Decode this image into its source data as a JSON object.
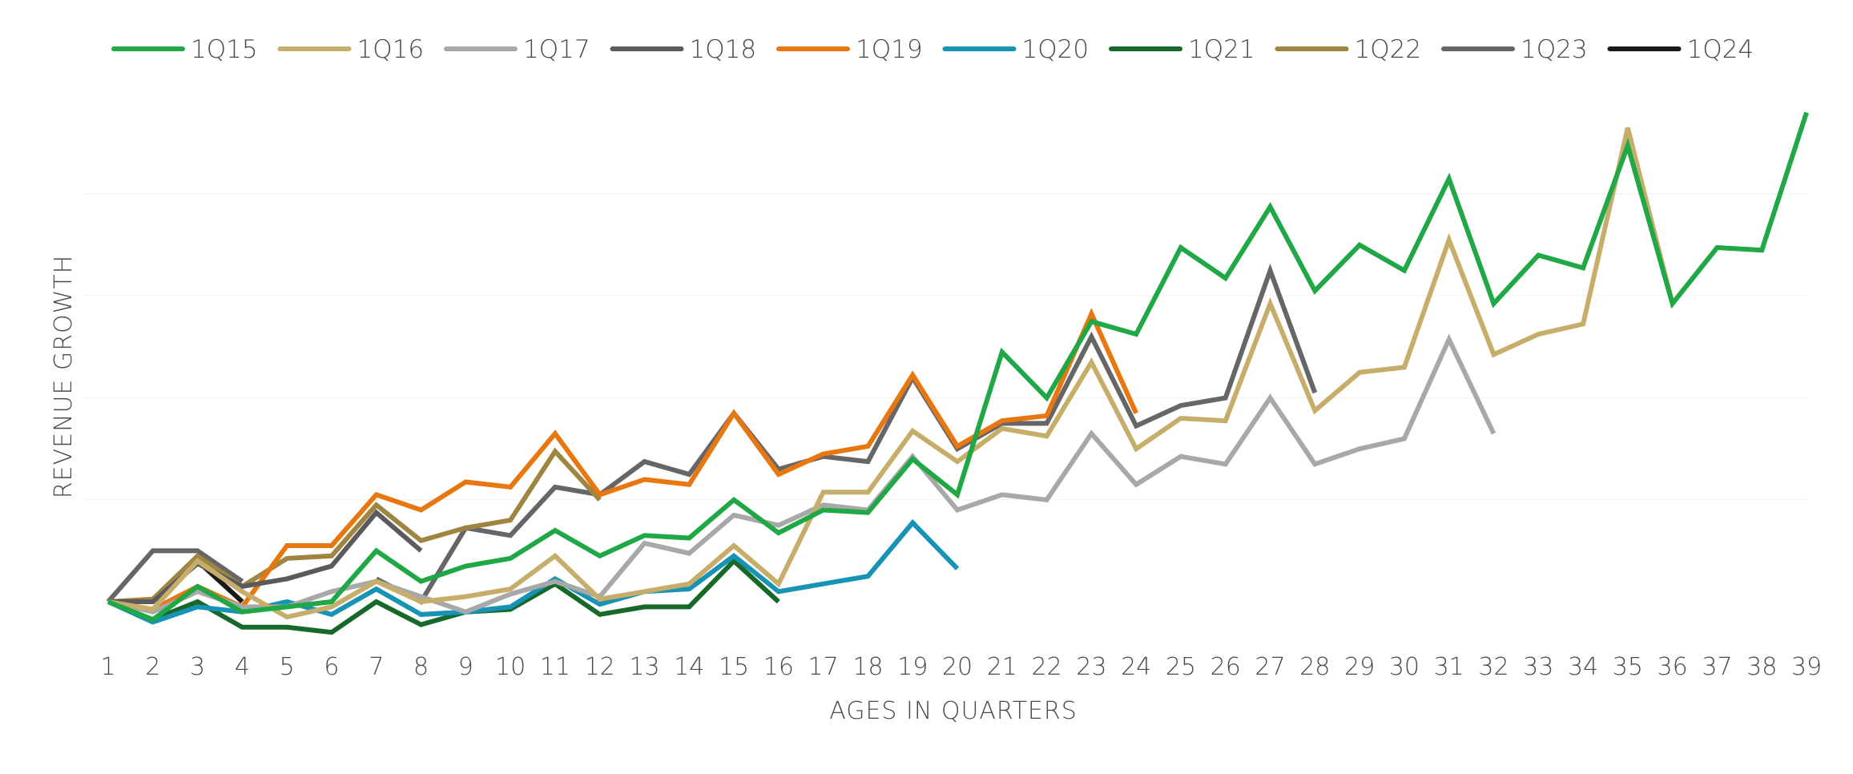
{
  "chart_data": {
    "type": "line",
    "title": "",
    "xlabel": "AGES IN QUARTERS",
    "ylabel": "REVENUE GROWTH",
    "x": [
      1,
      2,
      3,
      4,
      5,
      6,
      7,
      8,
      9,
      10,
      11,
      12,
      13,
      14,
      15,
      16,
      17,
      18,
      19,
      20,
      21,
      22,
      23,
      24,
      25,
      26,
      27,
      28,
      29,
      30,
      31,
      32,
      33,
      34,
      35,
      36,
      37,
      38,
      39
    ],
    "ylim": [
      0,
      10
    ],
    "y_ticks_shown": false,
    "grid": true,
    "legend_position": "top",
    "series": [
      {
        "name": "1Q15",
        "color": "#1fa845",
        "values": [
          0.0,
          -0.35,
          0.3,
          -0.2,
          -0.1,
          0.0,
          1.0,
          0.4,
          0.7,
          0.85,
          1.4,
          0.9,
          1.3,
          1.25,
          2.0,
          1.35,
          1.8,
          1.75,
          2.8,
          2.1,
          4.9,
          4.0,
          5.5,
          5.25,
          6.95,
          6.35,
          7.75,
          6.1,
          7.0,
          6.5,
          8.3,
          5.85,
          6.8,
          6.55,
          8.95,
          5.85,
          6.95,
          6.9,
          9.6
        ]
      },
      {
        "name": "1Q16",
        "color": "#c6ae6a",
        "values": [
          0.0,
          -0.15,
          0.8,
          0.2,
          -0.3,
          -0.1,
          0.4,
          0.0,
          0.1,
          0.25,
          0.9,
          0.05,
          0.2,
          0.35,
          1.1,
          0.35,
          2.15,
          2.15,
          3.35,
          2.75,
          3.4,
          3.25,
          4.7,
          3.0,
          3.6,
          3.55,
          5.85,
          3.75,
          4.5,
          4.6,
          7.1,
          4.85,
          5.25,
          5.45,
          9.3,
          5.85,
          null,
          null,
          null
        ]
      },
      {
        "name": "1Q17",
        "color": "#a8a8a8",
        "values": [
          0.0,
          -0.2,
          0.2,
          -0.1,
          -0.1,
          0.2,
          0.4,
          0.1,
          -0.2,
          0.15,
          0.4,
          0.1,
          1.15,
          0.95,
          1.7,
          1.5,
          1.9,
          1.8,
          2.85,
          1.8,
          2.1,
          2.0,
          3.3,
          2.3,
          2.85,
          2.7,
          4.0,
          2.7,
          3.0,
          3.2,
          5.15,
          3.3,
          null,
          null,
          null,
          null,
          null,
          null,
          null
        ]
      },
      {
        "name": "1Q18",
        "color": "#5b5b5d",
        "values": [
          0.0,
          0.0,
          0.75,
          0.3,
          0.45,
          0.7,
          1.75,
          1.0,
          null,
          null,
          null,
          null,
          null,
          null,
          null,
          null,
          null,
          null,
          null,
          null,
          null,
          null,
          null,
          null,
          null,
          null,
          null,
          null,
          null,
          null,
          null,
          null,
          null,
          null,
          null,
          null,
          null,
          null,
          null
        ]
      },
      {
        "name": "1Q19",
        "color": "#e8770f",
        "values": [
          0.0,
          -0.15,
          0.3,
          -0.1,
          1.1,
          1.1,
          2.1,
          1.8,
          2.35,
          2.25,
          3.3,
          2.1,
          2.4,
          2.3,
          3.7,
          2.5,
          2.9,
          3.05,
          4.45,
          3.05,
          3.55,
          3.65,
          5.65,
          3.7,
          null,
          null,
          null,
          null,
          null,
          null,
          null,
          null,
          null,
          null,
          null,
          null,
          null,
          null,
          null
        ]
      },
      {
        "name": "1Q20",
        "color": "#1693b5",
        "values": [
          0.0,
          -0.4,
          -0.1,
          -0.2,
          0.0,
          -0.25,
          0.25,
          -0.25,
          -0.2,
          -0.1,
          0.45,
          -0.05,
          0.2,
          0.25,
          0.9,
          0.2,
          0.35,
          0.5,
          1.55,
          0.65,
          null,
          null,
          null,
          null,
          null,
          null,
          null,
          null,
          null,
          null,
          null,
          null,
          null,
          null,
          null,
          null,
          null,
          null,
          null
        ]
      },
      {
        "name": "1Q21",
        "color": "#17692a",
        "values": [
          0.0,
          -0.35,
          0.0,
          -0.5,
          -0.5,
          -0.6,
          0.0,
          -0.45,
          -0.2,
          -0.15,
          0.35,
          -0.25,
          -0.1,
          -0.1,
          0.8,
          0.0,
          null,
          null,
          null,
          null,
          null,
          null,
          null,
          null,
          null,
          null,
          null,
          null,
          null,
          null,
          null,
          null,
          null,
          null,
          null,
          null,
          null,
          null,
          null
        ]
      },
      {
        "name": "1Q22",
        "color": "#9e8640",
        "values": [
          0.0,
          0.05,
          0.9,
          0.3,
          0.85,
          0.9,
          1.9,
          1.2,
          1.45,
          1.6,
          2.95,
          2.0,
          null,
          null,
          null,
          null,
          null,
          null,
          null,
          null,
          null,
          null,
          null,
          null,
          null,
          null,
          null,
          null,
          null,
          null,
          null,
          null,
          null,
          null,
          null,
          null,
          null,
          null,
          null
        ]
      },
      {
        "name": "1Q23",
        "color": "#666668",
        "values": [
          0.0,
          1.0,
          1.0,
          0.4,
          null,
          null,
          0.45,
          0.0,
          1.45,
          1.3,
          2.25,
          2.1,
          2.75,
          2.5,
          3.7,
          2.6,
          2.85,
          2.75,
          4.4,
          3.0,
          3.5,
          3.5,
          5.2,
          3.45,
          3.85,
          4.0,
          6.5,
          4.1,
          null,
          null,
          null,
          null,
          null,
          null,
          null,
          null,
          null,
          null,
          null
        ]
      },
      {
        "name": "1Q24",
        "color": "#1a1a1a",
        "values": [
          0.0,
          0.0,
          0.8,
          0.0,
          null,
          null,
          null,
          null,
          null,
          null,
          null,
          null,
          null,
          null,
          null,
          null,
          null,
          null,
          null,
          null,
          null,
          null,
          null,
          null,
          null,
          null,
          null,
          null,
          null,
          null,
          null,
          null,
          null,
          null,
          null,
          null,
          null,
          null,
          null
        ]
      }
    ]
  }
}
